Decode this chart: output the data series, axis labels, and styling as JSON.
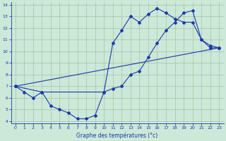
{
  "xlabel": "Graphe des températures (°c)",
  "bg_color": "#cce8d8",
  "line_color": "#1a3aaa",
  "xlim": [
    -0.5,
    23.5
  ],
  "ylim": [
    3.8,
    14.2
  ],
  "xticks": [
    0,
    1,
    2,
    3,
    4,
    5,
    6,
    7,
    8,
    9,
    10,
    11,
    12,
    13,
    14,
    15,
    16,
    17,
    18,
    19,
    20,
    21,
    22,
    23
  ],
  "yticks": [
    4,
    5,
    6,
    7,
    8,
    9,
    10,
    11,
    12,
    13,
    14
  ],
  "line1_x": [
    0,
    1,
    2,
    3,
    4,
    5,
    6,
    7,
    8,
    9,
    10,
    11,
    12,
    13,
    14,
    15,
    16,
    17,
    18,
    19,
    20,
    21,
    22,
    23
  ],
  "line1_y": [
    7.0,
    6.5,
    6.0,
    6.5,
    5.3,
    5.0,
    4.7,
    4.2,
    4.2,
    4.5,
    6.5,
    6.8,
    7.0,
    8.0,
    8.3,
    9.5,
    10.7,
    11.8,
    12.5,
    13.3,
    13.5,
    11.0,
    10.3,
    10.3
  ],
  "line3_x": [
    0,
    3,
    10,
    11,
    12,
    13,
    14,
    15,
    16,
    17,
    18,
    19,
    20,
    21,
    22,
    23
  ],
  "line3_y": [
    7.0,
    6.5,
    6.5,
    10.7,
    11.8,
    13.0,
    12.5,
    13.2,
    13.7,
    13.3,
    12.8,
    12.5,
    12.5,
    11.0,
    10.5,
    10.3
  ],
  "line4_x": [
    0,
    23
  ],
  "line4_y": [
    7.0,
    10.3
  ]
}
